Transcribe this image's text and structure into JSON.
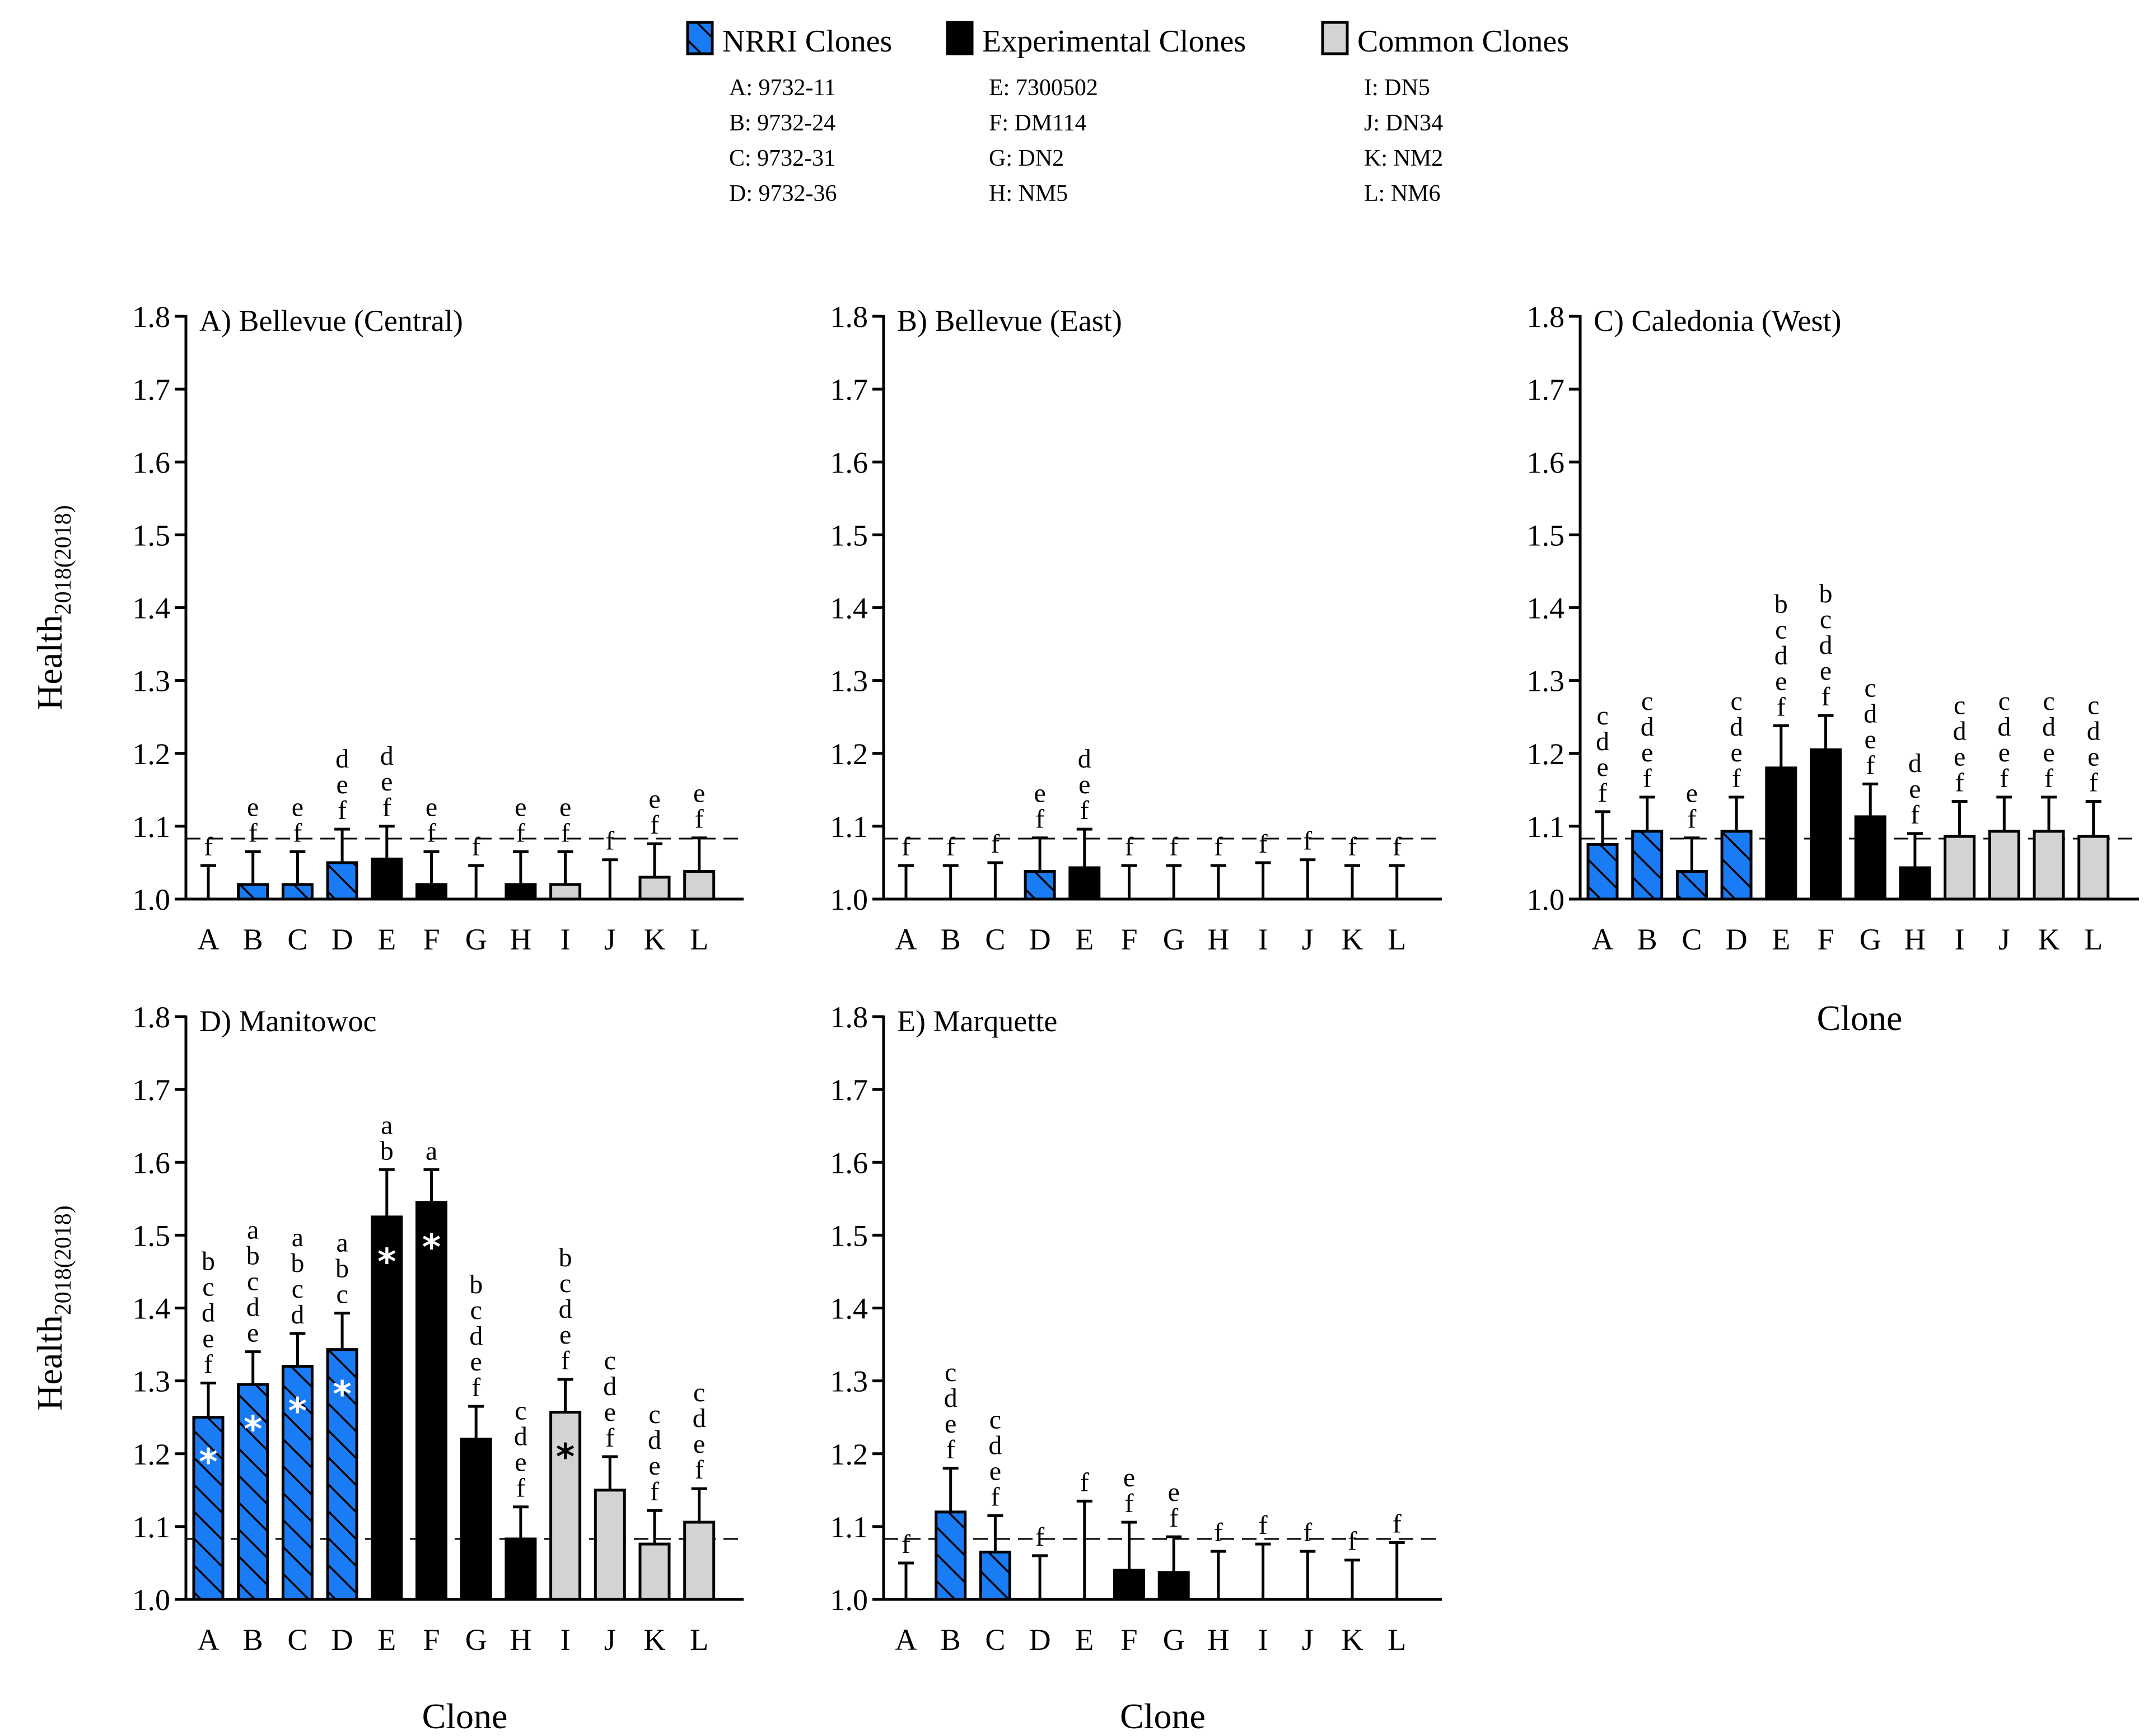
{
  "colors": {
    "nrri": "#1A7CF5",
    "experimental": "#000000",
    "common": "#D3D3D3",
    "hatch": "#000000",
    "star_white": "#FFFFFF",
    "star_black": "#000000"
  },
  "legend": {
    "groups": [
      {
        "name": "NRRI Clones",
        "style": "nrri",
        "entries": [
          "A: 9732-11",
          "B: 9732-24",
          "C: 9732-31",
          "D: 9732-36"
        ]
      },
      {
        "name": "Experimental Clones",
        "style": "experimental",
        "entries": [
          "E: 7300502",
          "F: DM114",
          "G: DN2",
          "H: NM5"
        ]
      },
      {
        "name": "Common Clones",
        "style": "common",
        "entries": [
          "I: DN5",
          "J: DN34",
          "K: NM2",
          "L: NM6"
        ]
      }
    ]
  },
  "chart_data": [
    {
      "type": "bar",
      "panel": "A",
      "title": "A) Bellevue (Central)",
      "ylabel": "Health",
      "ylabel_sub": "2018(2018)",
      "xlabel": "",
      "ylim": [
        1.0,
        1.8
      ],
      "yticks": [
        "1.0",
        "1.1",
        "1.2",
        "1.3",
        "1.4",
        "1.5",
        "1.6",
        "1.7",
        "1.8"
      ],
      "reference_line": 1.083,
      "categories": [
        "A",
        "B",
        "C",
        "D",
        "E",
        "F",
        "G",
        "H",
        "I",
        "J",
        "K",
        "L"
      ],
      "values": [
        1.0,
        1.02,
        1.02,
        1.05,
        1.055,
        1.02,
        1.0,
        1.02,
        1.02,
        1.0,
        1.03,
        1.038
      ],
      "error_upper": [
        1.046,
        1.065,
        1.065,
        1.096,
        1.1,
        1.065,
        1.046,
        1.065,
        1.065,
        1.054,
        1.076,
        1.084
      ],
      "letters": [
        [
          "f"
        ],
        [
          "e",
          "f"
        ],
        [
          "e",
          "f"
        ],
        [
          "d",
          "e",
          "f"
        ],
        [
          "d",
          "e",
          "f"
        ],
        [
          "e",
          "f"
        ],
        [
          "f"
        ],
        [
          "e",
          "f"
        ],
        [
          "e",
          "f"
        ],
        [
          "f"
        ],
        [
          "e",
          "f"
        ],
        [
          "e",
          "f"
        ]
      ],
      "significant": [
        false,
        false,
        false,
        false,
        false,
        false,
        false,
        false,
        false,
        false,
        false,
        false
      ]
    },
    {
      "type": "bar",
      "panel": "B",
      "title": "B) Bellevue (East)",
      "ylabel": "",
      "ylabel_sub": "",
      "xlabel": "",
      "ylim": [
        1.0,
        1.8
      ],
      "yticks": [
        "1.0",
        "1.1",
        "1.2",
        "1.3",
        "1.4",
        "1.5",
        "1.6",
        "1.7",
        "1.8"
      ],
      "reference_line": 1.083,
      "categories": [
        "A",
        "B",
        "C",
        "D",
        "E",
        "F",
        "G",
        "H",
        "I",
        "J",
        "K",
        "L"
      ],
      "values": [
        1.0,
        1.0,
        1.0,
        1.038,
        1.043,
        1.0,
        1.0,
        1.0,
        1.0,
        1.0,
        1.0,
        1.0
      ],
      "error_upper": [
        1.046,
        1.046,
        1.05,
        1.084,
        1.096,
        1.046,
        1.046,
        1.046,
        1.05,
        1.054,
        1.046,
        1.046
      ],
      "letters": [
        [
          "f"
        ],
        [
          "f"
        ],
        [
          "f"
        ],
        [
          "e",
          "f"
        ],
        [
          "d",
          "e",
          "f"
        ],
        [
          "f"
        ],
        [
          "f"
        ],
        [
          "f"
        ],
        [
          "f"
        ],
        [
          "f"
        ],
        [
          "f"
        ],
        [
          "f"
        ]
      ],
      "significant": [
        false,
        false,
        false,
        false,
        false,
        false,
        false,
        false,
        false,
        false,
        false,
        false
      ]
    },
    {
      "type": "bar",
      "panel": "C",
      "title": "C) Caledonia (West)",
      "ylabel": "",
      "ylabel_sub": "",
      "xlabel": "Clone",
      "ylim": [
        1.0,
        1.8
      ],
      "yticks": [
        "1.0",
        "1.1",
        "1.2",
        "1.3",
        "1.4",
        "1.5",
        "1.6",
        "1.7",
        "1.8"
      ],
      "reference_line": 1.083,
      "categories": [
        "A",
        "B",
        "C",
        "D",
        "E",
        "F",
        "G",
        "H",
        "I",
        "J",
        "K",
        "L"
      ],
      "values": [
        1.075,
        1.093,
        1.038,
        1.093,
        1.18,
        1.205,
        1.113,
        1.043,
        1.086,
        1.093,
        1.093,
        1.086
      ],
      "error_upper": [
        1.12,
        1.14,
        1.084,
        1.14,
        1.238,
        1.252,
        1.158,
        1.09,
        1.134,
        1.14,
        1.14,
        1.134
      ],
      "letters": [
        [
          "c",
          "d",
          "e",
          "f"
        ],
        [
          "c",
          "d",
          "e",
          "f"
        ],
        [
          "e",
          "f"
        ],
        [
          "c",
          "d",
          "e",
          "f"
        ],
        [
          "b",
          "c",
          "d",
          "e",
          "f"
        ],
        [
          "b",
          "c",
          "d",
          "e",
          "f"
        ],
        [
          "c",
          "d",
          "e",
          "f"
        ],
        [
          "d",
          "e",
          "f"
        ],
        [
          "c",
          "d",
          "e",
          "f"
        ],
        [
          "c",
          "d",
          "e",
          "f"
        ],
        [
          "c",
          "d",
          "e",
          "f"
        ],
        [
          "c",
          "d",
          "e",
          "f"
        ]
      ],
      "significant": [
        false,
        false,
        false,
        false,
        false,
        false,
        false,
        false,
        false,
        false,
        false,
        false
      ]
    },
    {
      "type": "bar",
      "panel": "D",
      "title": "D) Manitowoc",
      "ylabel": "Health",
      "ylabel_sub": "2018(2018)",
      "xlabel": "Clone",
      "ylim": [
        1.0,
        1.8
      ],
      "yticks": [
        "1.0",
        "1.1",
        "1.2",
        "1.3",
        "1.4",
        "1.5",
        "1.6",
        "1.7",
        "1.8"
      ],
      "reference_line": 1.083,
      "categories": [
        "A",
        "B",
        "C",
        "D",
        "E",
        "F",
        "G",
        "H",
        "I",
        "J",
        "K",
        "L"
      ],
      "values": [
        1.25,
        1.295,
        1.32,
        1.343,
        1.525,
        1.545,
        1.22,
        1.083,
        1.257,
        1.15,
        1.076,
        1.106
      ],
      "error_upper": [
        1.297,
        1.34,
        1.365,
        1.393,
        1.59,
        1.59,
        1.265,
        1.127,
        1.302,
        1.196,
        1.122,
        1.152
      ],
      "letters": [
        [
          "b",
          "c",
          "d",
          "e",
          "f"
        ],
        [
          "a",
          "b",
          "c",
          "d",
          "e"
        ],
        [
          "a",
          "b",
          "c",
          "d"
        ],
        [
          "a",
          "b",
          "c"
        ],
        [
          "a",
          "b"
        ],
        [
          "a"
        ],
        [
          "b",
          "c",
          "d",
          "e",
          "f"
        ],
        [
          "c",
          "d",
          "e",
          "f"
        ],
        [
          "b",
          "c",
          "d",
          "e",
          "f"
        ],
        [
          "c",
          "d",
          "e",
          "f"
        ],
        [
          "c",
          "d",
          "e",
          "f"
        ],
        [
          "c",
          "d",
          "e",
          "f"
        ]
      ],
      "significant": [
        true,
        true,
        true,
        true,
        true,
        true,
        false,
        false,
        true,
        false,
        false,
        false
      ]
    },
    {
      "type": "bar",
      "panel": "E",
      "title": "E) Marquette",
      "ylabel": "",
      "ylabel_sub": "",
      "xlabel": "Clone",
      "ylim": [
        1.0,
        1.8
      ],
      "yticks": [
        "1.0",
        "1.1",
        "1.2",
        "1.3",
        "1.4",
        "1.5",
        "1.6",
        "1.7",
        "1.8"
      ],
      "reference_line": 1.083,
      "categories": [
        "A",
        "B",
        "C",
        "D",
        "E",
        "F",
        "G",
        "H",
        "I",
        "J",
        "K",
        "L"
      ],
      "values": [
        1.0,
        1.12,
        1.065,
        1.0,
        1.0,
        1.04,
        1.037,
        1.0,
        1.0,
        1.0,
        1.0,
        1.0
      ],
      "error_upper": [
        1.05,
        1.18,
        1.115,
        1.06,
        1.135,
        1.106,
        1.086,
        1.066,
        1.076,
        1.066,
        1.054,
        1.078
      ],
      "letters": [
        [
          "f"
        ],
        [
          "c",
          "d",
          "e",
          "f"
        ],
        [
          "c",
          "d",
          "e",
          "f"
        ],
        [
          "f"
        ],
        [
          "f"
        ],
        [
          "e",
          "f"
        ],
        [
          "e",
          "f"
        ],
        [
          "f"
        ],
        [
          "f"
        ],
        [
          "f"
        ],
        [
          "f"
        ],
        [
          "f"
        ]
      ],
      "significant": [
        false,
        false,
        false,
        false,
        false,
        false,
        false,
        false,
        false,
        false,
        false,
        false
      ]
    }
  ]
}
